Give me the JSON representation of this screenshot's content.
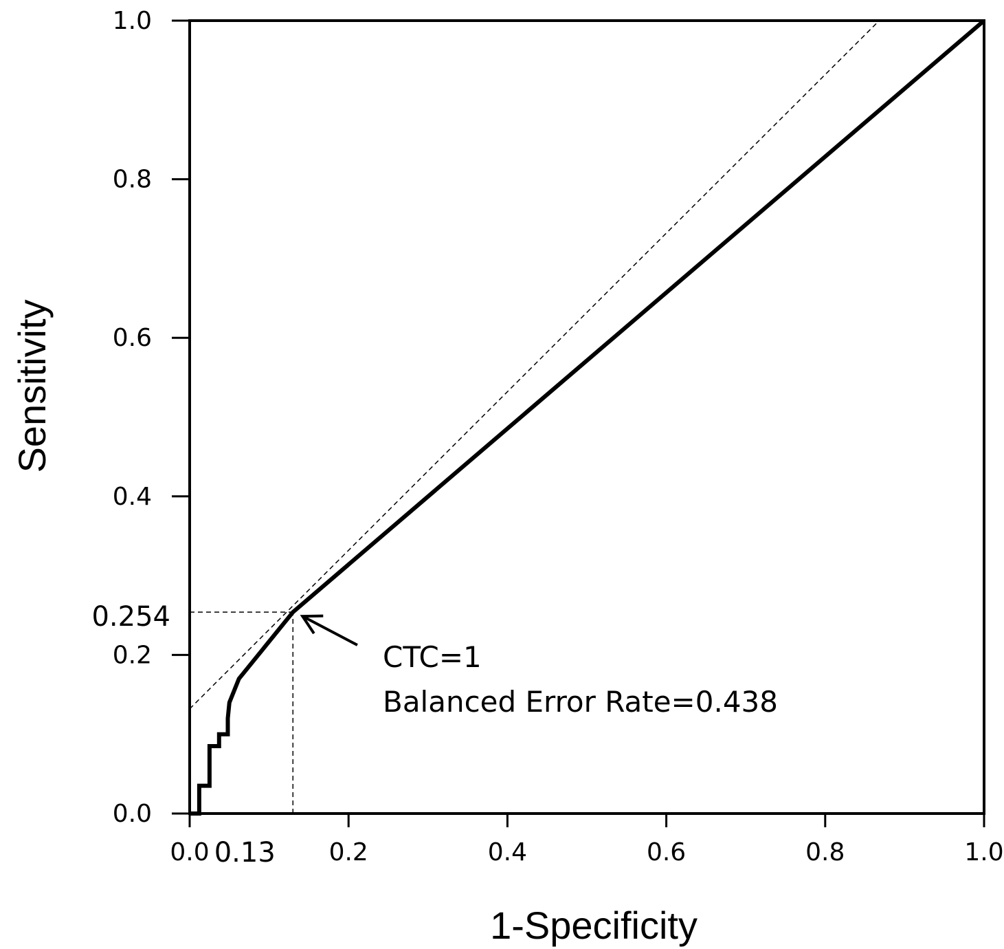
{
  "chart_data": {
    "type": "line",
    "xlabel": "1-Specificity",
    "ylabel": "Sensitivity",
    "xlim": [
      0,
      1
    ],
    "ylim": [
      0,
      1
    ],
    "x_ticks": [
      "0.0",
      "0.2",
      "0.4",
      "0.6",
      "0.8",
      "1.0"
    ],
    "y_ticks": [
      "0.0",
      "0.2",
      "0.4",
      "0.6",
      "0.8",
      "1.0"
    ],
    "grid": false,
    "legend": false,
    "series": [
      {
        "style": "solid-thick",
        "x": [
          0.0,
          0.012,
          0.012,
          0.025,
          0.025,
          0.037,
          0.037,
          0.048,
          0.048,
          0.05,
          0.062,
          0.13,
          1.0
        ],
        "y": [
          0.0,
          0.0,
          0.035,
          0.035,
          0.085,
          0.085,
          0.1,
          0.1,
          0.12,
          0.14,
          0.17,
          0.254,
          1.0
        ]
      },
      {
        "style": "dashed",
        "x": [
          0.0,
          0.868
        ],
        "y": [
          0.132,
          1.0
        ]
      }
    ],
    "reference_lines": [
      {
        "style": "dashed",
        "x": [
          0.0,
          0.13
        ],
        "y": [
          0.254,
          0.254
        ]
      },
      {
        "style": "dashed",
        "x": [
          0.13,
          0.13
        ],
        "y": [
          0.0,
          0.254
        ]
      }
    ],
    "marked_point": {
      "x": 0.13,
      "y": 0.254,
      "x_label": "0.13",
      "y_label": "0.254"
    },
    "annotation": {
      "line1": "CTC=1",
      "line2": "Balanced Error Rate=0.438",
      "arrow_to": {
        "x": 0.13,
        "y": 0.254
      }
    }
  }
}
